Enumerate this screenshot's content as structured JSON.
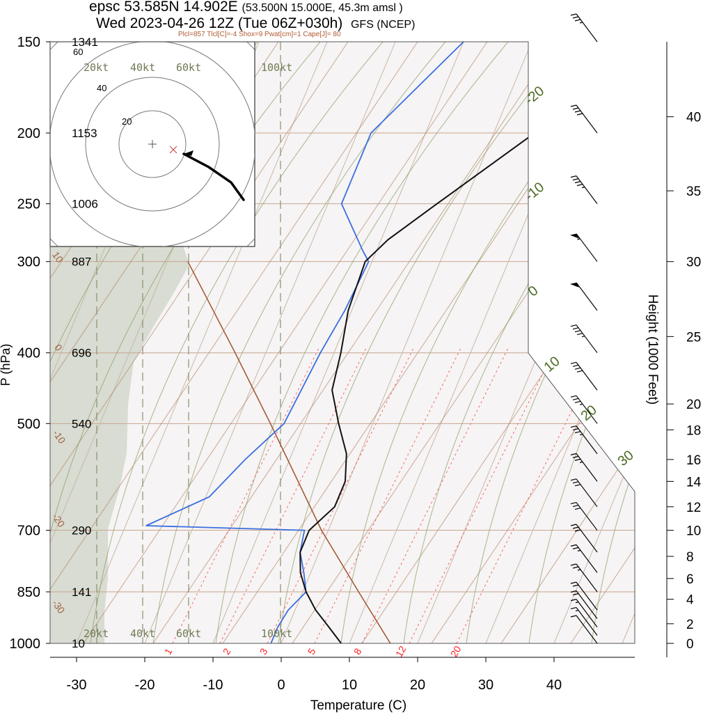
{
  "header": {
    "station_line": "epsc 53.585N 14.902E",
    "grid_point": "(53.500N 15.000E,  45.3m amsl )",
    "time_line": "Wed 2023-04-26 12Z (Tue 06Z+030h)",
    "model": "GFS (NCEP)",
    "indices": "Plcl=857 Tlcl[C]=-4 Shox=9 Pwat[cm]=1 Cape[J]= 80"
  },
  "chart_data": {
    "type": "line",
    "xlabel": "Temperature (C)",
    "ylabel": "P (hPa)",
    "ylabel_right": "Height (1000 Feet)",
    "x_ticks": [
      "-30",
      "-20",
      "-10",
      "0",
      "10",
      "20",
      "30",
      "40"
    ],
    "x_tick_values": [
      -30,
      -20,
      -10,
      0,
      10,
      20,
      30,
      40
    ],
    "pressure_levels": [
      {
        "p": 150,
        "label": "150",
        "height_m": "1341"
      },
      {
        "p": 200,
        "label": "200",
        "height_m": "1153"
      },
      {
        "p": 250,
        "label": "250",
        "height_m": "1006"
      },
      {
        "p": 300,
        "label": "300",
        "height_m": "887"
      },
      {
        "p": 400,
        "label": "400",
        "height_m": "696"
      },
      {
        "p": 500,
        "label": "500",
        "height_m": "540"
      },
      {
        "p": 700,
        "label": "700",
        "height_m": "290"
      },
      {
        "p": 850,
        "label": "850",
        "height_m": "141"
      },
      {
        "p": 1000,
        "label": "1000",
        "height_m": "10"
      }
    ],
    "height_ticks_kft": [
      {
        "v": 0,
        "p": 1000
      },
      {
        "v": 2,
        "p": 940
      },
      {
        "v": 4,
        "p": 870
      },
      {
        "v": 6,
        "p": 815
      },
      {
        "v": 8,
        "p": 760
      },
      {
        "v": 10,
        "p": 700
      },
      {
        "v": 12,
        "p": 650
      },
      {
        "v": 14,
        "p": 600
      },
      {
        "v": 16,
        "p": 560
      },
      {
        "v": 18,
        "p": 510
      },
      {
        "v": 20,
        "p": 470
      },
      {
        "v": 25,
        "p": 380
      },
      {
        "v": 30,
        "p": 300
      },
      {
        "v": 35,
        "p": 240
      },
      {
        "v": 40,
        "p": 190
      }
    ],
    "temperature_profile": [
      {
        "p": 1000,
        "t": 8.8
      },
      {
        "p": 950,
        "t": 6.0
      },
      {
        "p": 900,
        "t": 3.0
      },
      {
        "p": 850,
        "t": 0.5
      },
      {
        "p": 800,
        "t": -1.5
      },
      {
        "p": 750,
        "t": -2.8
      },
      {
        "p": 700,
        "t": -2.8
      },
      {
        "p": 650,
        "t": -0.5
      },
      {
        "p": 600,
        "t": -0.5
      },
      {
        "p": 550,
        "t": -2.0
      },
      {
        "p": 500,
        "t": -5.0
      },
      {
        "p": 450,
        "t": -8.0
      },
      {
        "p": 400,
        "t": -9.0
      },
      {
        "p": 350,
        "t": -10.5
      },
      {
        "p": 300,
        "t": -11.0
      },
      {
        "p": 280,
        "t": -9.0
      },
      {
        "p": 250,
        "t": -4.0
      },
      {
        "p": 200,
        "t": 6.0
      },
      {
        "p": 150,
        "t": 12.5
      }
    ],
    "dewpoint_profile": [
      {
        "p": 1000,
        "t": -1.5
      },
      {
        "p": 950,
        "t": -1.5
      },
      {
        "p": 900,
        "t": -1.0
      },
      {
        "p": 850,
        "t": 0.5
      },
      {
        "p": 800,
        "t": -1.0
      },
      {
        "p": 750,
        "t": -2.8
      },
      {
        "p": 700,
        "t": -3.5
      },
      {
        "p": 690,
        "t": -27.0
      },
      {
        "p": 630,
        "t": -19.5
      },
      {
        "p": 560,
        "t": -16.5
      },
      {
        "p": 500,
        "t": -13.0
      },
      {
        "p": 400,
        "t": -12.0
      },
      {
        "p": 350,
        "t": -11.0
      },
      {
        "p": 300,
        "t": -10.5
      },
      {
        "p": 290,
        "t": -12.0
      },
      {
        "p": 250,
        "t": -18.0
      },
      {
        "p": 200,
        "t": -18.0
      },
      {
        "p": 150,
        "t": -10.0
      }
    ],
    "parcel_profile": [
      {
        "p": 1000,
        "t": 16.0
      },
      {
        "p": 850,
        "t": 8.2
      },
      {
        "p": 700,
        "t": -1.0
      },
      {
        "p": 500,
        "t": -15.0
      },
      {
        "p": 400,
        "t": -24.5
      },
      {
        "p": 300,
        "t": -37.0
      }
    ],
    "isotherm_labels": [
      "-20",
      "-10",
      "0",
      "10",
      "20",
      "30"
    ],
    "isotherm_label_values": [
      -20,
      -10,
      0,
      10,
      20,
      30
    ],
    "dry_adiabat_labels": [
      "10",
      "0",
      "-10",
      "-20",
      "-30",
      "30"
    ],
    "mixing_ratio_labels": [
      "1",
      "2",
      "3",
      "5",
      "8",
      "12",
      "20"
    ],
    "wind_barbs": [
      {
        "p": 1000,
        "speed_kt": 10
      },
      {
        "p": 975,
        "speed_kt": 15
      },
      {
        "p": 950,
        "speed_kt": 15
      },
      {
        "p": 925,
        "speed_kt": 20
      },
      {
        "p": 900,
        "speed_kt": 20
      },
      {
        "p": 850,
        "speed_kt": 25
      },
      {
        "p": 800,
        "speed_kt": 25
      },
      {
        "p": 750,
        "speed_kt": 30
      },
      {
        "p": 700,
        "speed_kt": 30
      },
      {
        "p": 650,
        "speed_kt": 30
      },
      {
        "p": 600,
        "speed_kt": 35
      },
      {
        "p": 550,
        "speed_kt": 35
      },
      {
        "p": 500,
        "speed_kt": 35
      },
      {
        "p": 450,
        "speed_kt": 40
      },
      {
        "p": 400,
        "speed_kt": 45
      },
      {
        "p": 350,
        "speed_kt": 50
      },
      {
        "p": 300,
        "speed_kt": 55
      },
      {
        "p": 250,
        "speed_kt": 45
      },
      {
        "p": 200,
        "speed_kt": 40
      },
      {
        "p": 150,
        "speed_kt": 35
      }
    ],
    "speed_guide_labels": [
      "20kt",
      "40kt",
      "60kt",
      "100kt"
    ],
    "hodograph": {
      "ring_labels": [
        "20",
        "40",
        "60"
      ]
    },
    "colors": {
      "temperature": "#111111",
      "dewpoint": "#3a6fe0",
      "parcel": "#a0522d",
      "isotherm": "#c9a58f",
      "dry_adiabat": "#b08060",
      "moist_adiabat": "#8a9a60",
      "mixing_ratio": "#ff4040",
      "cloud_shading": "#d8dcd2",
      "isotherm_label": "#4a6a20"
    }
  }
}
